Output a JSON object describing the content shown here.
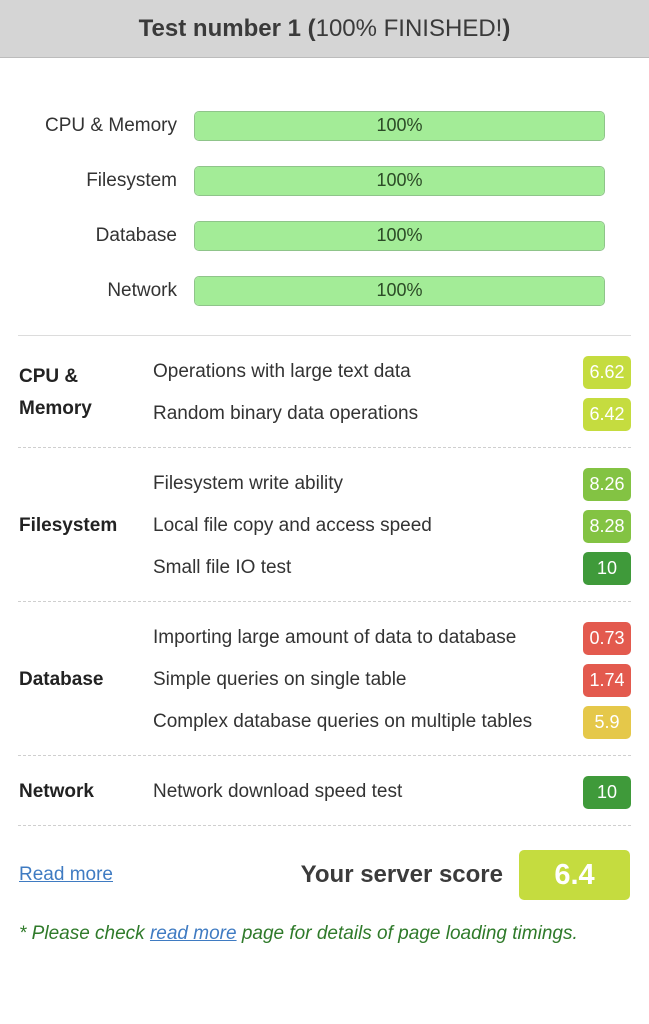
{
  "header": {
    "title_bold": "Test number 1 (",
    "title_light": "100% FINISHED!",
    "title_end": ")"
  },
  "progress": [
    {
      "label": "CPU & Memory",
      "value": 100,
      "text": "100%"
    },
    {
      "label": "Filesystem",
      "value": 100,
      "text": "100%"
    },
    {
      "label": "Database",
      "value": 100,
      "text": "100%"
    },
    {
      "label": "Network",
      "value": 100,
      "text": "100%"
    }
  ],
  "groups": [
    {
      "title": "CPU &\nMemory",
      "items": [
        {
          "label": "Operations with large text data",
          "score": "6.62",
          "color": "#c5dc3f"
        },
        {
          "label": "Random binary data operations",
          "score": "6.42",
          "color": "#c5dc3f"
        }
      ]
    },
    {
      "title": "Filesystem",
      "items": [
        {
          "label": "Filesystem write ability",
          "score": "8.26",
          "color": "#83c343"
        },
        {
          "label": "Local file copy and access speed",
          "score": "8.28",
          "color": "#83c343"
        },
        {
          "label": "Small file IO test",
          "score": "10",
          "color": "#3f9a3a"
        }
      ]
    },
    {
      "title": "Database",
      "items": [
        {
          "label": "Importing large amount of data to database",
          "score": "0.73",
          "color": "#e35a4e"
        },
        {
          "label": "Simple queries on single table",
          "score": "1.74",
          "color": "#e35a4e"
        },
        {
          "label": "Complex database queries on multiple tables",
          "score": "5.9",
          "color": "#e5c84a"
        }
      ]
    },
    {
      "title": "Network",
      "items": [
        {
          "label": "Network download speed test",
          "score": "10",
          "color": "#3f9a3a"
        }
      ]
    }
  ],
  "footer": {
    "read_more": "Read more",
    "score_label": "Your server score",
    "score": "6.4",
    "score_color": "#c5dc3f"
  },
  "note": {
    "prefix": "* Please check ",
    "link": "read more",
    "suffix": " page for details of page loading timings."
  },
  "colors": {
    "header_bg": "#d5d5d5",
    "progress_fill": "#a3ec97",
    "link": "#3f7bc2",
    "note_text": "#2f7a2a"
  }
}
